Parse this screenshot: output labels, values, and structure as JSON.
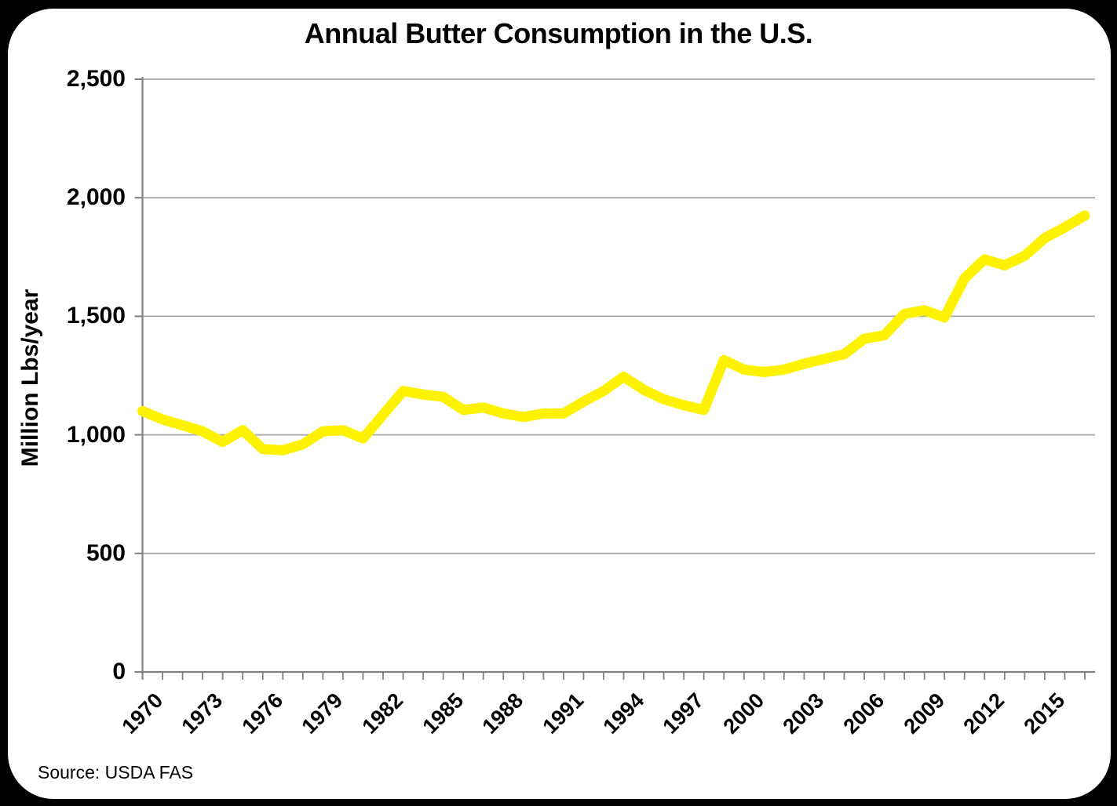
{
  "title": "Annual Butter Consumption in the U.S.",
  "y_axis_title": "Million Lbs/year",
  "source_note": "Source: USDA FAS",
  "colors": {
    "page_background": "#000000",
    "card_background": "#FFFFFF",
    "line": "#FFF200",
    "gridline": "#A6A6A6",
    "axis": "#808080",
    "text": "#000000"
  },
  "chart_data": {
    "type": "line",
    "title": "Annual Butter Consumption in the U.S.",
    "xlabel": "",
    "ylabel": "Million Lbs/year",
    "ylim": [
      0,
      2500
    ],
    "y_tick_values": [
      0,
      500,
      1000,
      1500,
      2000,
      2500
    ],
    "y_tick_labels": [
      "0",
      "500",
      "1,000",
      "1,500",
      "2,000",
      "2,500"
    ],
    "x_range": [
      1970,
      2017
    ],
    "x_labeled_ticks": [
      "1970",
      "1973",
      "1976",
      "1979",
      "1982",
      "1985",
      "1988",
      "1991",
      "1994",
      "1997",
      "2000",
      "2003",
      "2006",
      "2009",
      "2012",
      "2015"
    ],
    "x_label_step": 3,
    "grid": "horizontal",
    "legend": "none",
    "series": [
      {
        "name": "Annual butter consumption (million lbs/year)",
        "x": [
          1970,
          1971,
          1972,
          1973,
          1974,
          1975,
          1976,
          1977,
          1978,
          1979,
          1980,
          1981,
          1982,
          1983,
          1984,
          1985,
          1986,
          1987,
          1988,
          1989,
          1990,
          1991,
          1992,
          1993,
          1994,
          1995,
          1996,
          1997,
          1998,
          1999,
          2000,
          2001,
          2002,
          2003,
          2004,
          2005,
          2006,
          2007,
          2008,
          2009,
          2010,
          2011,
          2012,
          2013,
          2014,
          2015,
          2016,
          2017
        ],
        "values": [
          1100,
          1065,
          1040,
          1015,
          970,
          1020,
          940,
          935,
          960,
          1015,
          1020,
          985,
          1085,
          1185,
          1170,
          1160,
          1105,
          1115,
          1090,
          1075,
          1090,
          1090,
          1140,
          1185,
          1245,
          1190,
          1150,
          1125,
          1105,
          1315,
          1275,
          1265,
          1275,
          1300,
          1320,
          1340,
          1405,
          1420,
          1510,
          1525,
          1495,
          1660,
          1740,
          1715,
          1755,
          1830,
          1875,
          1925
        ]
      }
    ]
  }
}
